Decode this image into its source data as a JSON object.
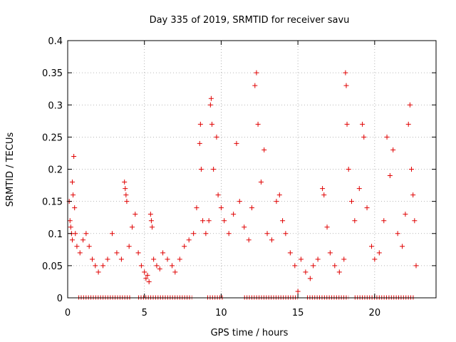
{
  "chart_data": {
    "type": "scatter",
    "title": "Day 335 of 2019, SRMTID for receiver savu",
    "xlabel": "GPS time / hours",
    "ylabel": "SRMTID / TECUs",
    "xlim": [
      0,
      24
    ],
    "ylim": [
      0,
      0.4
    ],
    "grid": true,
    "xticks": [
      0,
      5,
      10,
      15,
      20
    ],
    "xtick_labels": [
      "0",
      "5",
      "10",
      "15",
      "20"
    ],
    "yticks": [
      0,
      0.05,
      0.1,
      0.15,
      0.2,
      0.25,
      0.3,
      0.35,
      0.4
    ],
    "ytick_labels": [
      "0",
      "0.05",
      "0.1",
      "0.15",
      "0.2",
      "0.25",
      "0.3",
      "0.35",
      "0.4"
    ],
    "marker": "+",
    "colors": {
      "series": "#e00000",
      "grid": "#a0a0a0",
      "axes": "#000000"
    },
    "series": [
      {
        "name": "SRMTID",
        "points": [
          [
            0.1,
            0.15
          ],
          [
            0.15,
            0.12
          ],
          [
            0.2,
            0.11
          ],
          [
            0.3,
            0.18
          ],
          [
            0.35,
            0.16
          ],
          [
            0.4,
            0.22
          ],
          [
            0.45,
            0.14
          ],
          [
            0.25,
            0.1
          ],
          [
            0.3,
            0.09
          ],
          [
            0.5,
            0.1
          ],
          [
            0.6,
            0.08
          ],
          [
            0.8,
            0.07
          ],
          [
            1.0,
            0.09
          ],
          [
            1.2,
            0.1
          ],
          [
            1.4,
            0.08
          ],
          [
            1.6,
            0.06
          ],
          [
            1.8,
            0.05
          ],
          [
            2.0,
            0.04
          ],
          [
            2.3,
            0.05
          ],
          [
            2.6,
            0.06
          ],
          [
            2.9,
            0.1
          ],
          [
            3.2,
            0.07
          ],
          [
            3.5,
            0.06
          ],
          [
            3.7,
            0.18
          ],
          [
            3.75,
            0.17
          ],
          [
            3.8,
            0.16
          ],
          [
            3.85,
            0.15
          ],
          [
            4.0,
            0.08
          ],
          [
            4.2,
            0.11
          ],
          [
            4.4,
            0.13
          ],
          [
            4.6,
            0.07
          ],
          [
            4.8,
            0.05
          ],
          [
            5.0,
            0.04
          ],
          [
            5.1,
            0.03
          ],
          [
            5.2,
            0.035
          ],
          [
            5.3,
            0.025
          ],
          [
            5.4,
            0.13
          ],
          [
            5.45,
            0.12
          ],
          [
            5.5,
            0.11
          ],
          [
            5.6,
            0.06
          ],
          [
            5.8,
            0.05
          ],
          [
            6.0,
            0.045
          ],
          [
            6.2,
            0.07
          ],
          [
            6.5,
            0.06
          ],
          [
            6.8,
            0.05
          ],
          [
            7.0,
            0.04
          ],
          [
            7.3,
            0.06
          ],
          [
            7.6,
            0.08
          ],
          [
            7.9,
            0.09
          ],
          [
            8.2,
            0.1
          ],
          [
            8.4,
            0.14
          ],
          [
            8.6,
            0.24
          ],
          [
            8.65,
            0.27
          ],
          [
            8.7,
            0.2
          ],
          [
            8.8,
            0.12
          ],
          [
            9.0,
            0.1
          ],
          [
            9.2,
            0.12
          ],
          [
            9.3,
            0.3
          ],
          [
            9.35,
            0.31
          ],
          [
            9.4,
            0.27
          ],
          [
            9.5,
            0.2
          ],
          [
            9.7,
            0.25
          ],
          [
            9.8,
            0.16
          ],
          [
            10.0,
            0.14
          ],
          [
            10.2,
            0.12
          ],
          [
            10.5,
            0.1
          ],
          [
            10.8,
            0.13
          ],
          [
            11.0,
            0.24
          ],
          [
            11.2,
            0.15
          ],
          [
            11.5,
            0.11
          ],
          [
            11.8,
            0.09
          ],
          [
            12.0,
            0.14
          ],
          [
            12.2,
            0.33
          ],
          [
            12.3,
            0.35
          ],
          [
            12.4,
            0.27
          ],
          [
            12.6,
            0.18
          ],
          [
            12.8,
            0.23
          ],
          [
            13.0,
            0.1
          ],
          [
            13.3,
            0.09
          ],
          [
            13.6,
            0.15
          ],
          [
            13.8,
            0.16
          ],
          [
            14.0,
            0.12
          ],
          [
            14.2,
            0.1
          ],
          [
            14.5,
            0.07
          ],
          [
            14.8,
            0.05
          ],
          [
            15.0,
            0.01
          ],
          [
            15.2,
            0.06
          ],
          [
            15.5,
            0.04
          ],
          [
            15.8,
            0.03
          ],
          [
            16.0,
            0.05
          ],
          [
            16.3,
            0.06
          ],
          [
            16.6,
            0.17
          ],
          [
            16.7,
            0.16
          ],
          [
            16.9,
            0.11
          ],
          [
            17.1,
            0.07
          ],
          [
            17.4,
            0.05
          ],
          [
            17.7,
            0.04
          ],
          [
            18.0,
            0.06
          ],
          [
            18.1,
            0.35
          ],
          [
            18.15,
            0.33
          ],
          [
            18.2,
            0.27
          ],
          [
            18.3,
            0.2
          ],
          [
            18.5,
            0.15
          ],
          [
            18.7,
            0.12
          ],
          [
            19.0,
            0.17
          ],
          [
            19.2,
            0.27
          ],
          [
            19.3,
            0.25
          ],
          [
            19.5,
            0.14
          ],
          [
            19.8,
            0.08
          ],
          [
            20.0,
            0.06
          ],
          [
            20.3,
            0.07
          ],
          [
            20.6,
            0.12
          ],
          [
            20.8,
            0.25
          ],
          [
            21.0,
            0.19
          ],
          [
            21.2,
            0.23
          ],
          [
            21.5,
            0.1
          ],
          [
            21.8,
            0.08
          ],
          [
            22.0,
            0.13
          ],
          [
            22.2,
            0.27
          ],
          [
            22.3,
            0.3
          ],
          [
            22.4,
            0.2
          ],
          [
            22.5,
            0.16
          ],
          [
            22.6,
            0.12
          ],
          [
            22.7,
            0.05
          ]
        ]
      }
    ]
  }
}
